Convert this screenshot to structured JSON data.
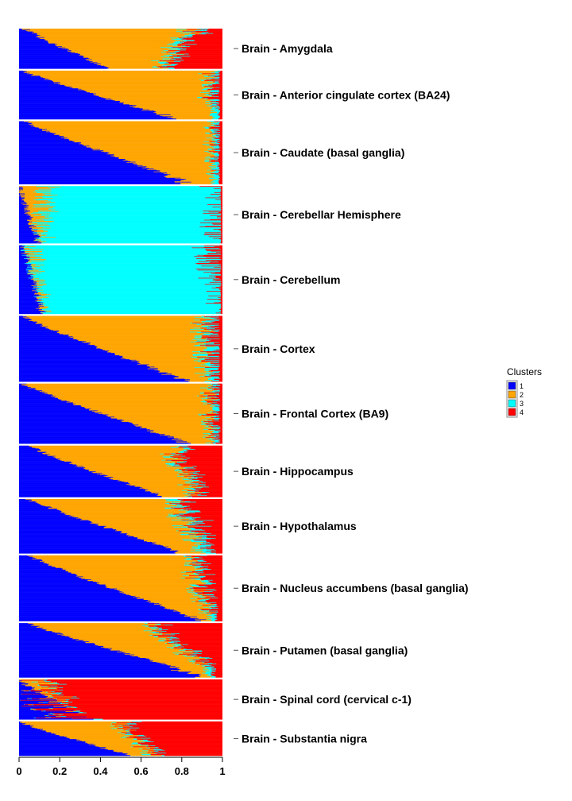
{
  "chart_data": {
    "type": "bar",
    "orientation": "horizontal",
    "stacked": true,
    "xlim": [
      0,
      1
    ],
    "x_ticks": [
      "0",
      "0.2",
      "0.4",
      "0.6",
      "0.8",
      "1"
    ],
    "legend": {
      "title": "Clusters",
      "placement": "right",
      "items": [
        {
          "label": "1",
          "color": "#0000ff"
        },
        {
          "label": "2",
          "color": "#ffa500"
        },
        {
          "label": "3",
          "color": "#00ffff"
        },
        {
          "label": "4",
          "color": "#ff0000"
        }
      ]
    },
    "panels": [
      {
        "name": "Brain - Amygdala",
        "n": 70,
        "c1": [
          0.03,
          0.44
        ],
        "c2": [
          0.26,
          0.82
        ],
        "c3": [
          0.02,
          0.06
        ],
        "c4_min": 0.04
      },
      {
        "name": "Brain - Anterior cingulate cortex (BA24)",
        "n": 85,
        "c1": [
          0.02,
          0.8
        ],
        "c2": [
          0.18,
          0.94
        ],
        "c3": [
          0.01,
          0.05
        ],
        "c4_min": 0.01
      },
      {
        "name": "Brain - Caudate (basal ganglia)",
        "n": 110,
        "c1": [
          0.03,
          0.88
        ],
        "c2": [
          0.12,
          0.96
        ],
        "c3": [
          0.01,
          0.05
        ],
        "c4_min": 0.01
      },
      {
        "name": "Brain - Cerebellar Hemisphere",
        "n": 100,
        "c1": [
          0.0,
          0.1
        ],
        "c2": [
          0.02,
          0.14
        ],
        "c3": [
          0.8,
          0.96
        ],
        "c4_min": 0.005
      },
      {
        "name": "Brain - Cerebellum",
        "n": 120,
        "c1": [
          0.02,
          0.12
        ],
        "c2": [
          0.0,
          0.04
        ],
        "c3": [
          0.82,
          0.96
        ],
        "c4_min": 0.005
      },
      {
        "name": "Brain - Cortex",
        "n": 115,
        "c1": [
          0.02,
          0.85
        ],
        "c2": [
          0.1,
          0.9
        ],
        "c3": [
          0.01,
          0.08
        ],
        "c4_min": 0.01
      },
      {
        "name": "Brain - Frontal Cortex (BA9)",
        "n": 105,
        "c1": [
          0.02,
          0.85
        ],
        "c2": [
          0.12,
          0.94
        ],
        "c3": [
          0.01,
          0.04
        ],
        "c4_min": 0.01
      },
      {
        "name": "Brain - Hippocampus",
        "n": 90,
        "c1": [
          0.05,
          0.72
        ],
        "c2": [
          0.15,
          0.72
        ],
        "c3": [
          0.01,
          0.05
        ],
        "c4_min": 0.04
      },
      {
        "name": "Brain - Hypothalamus",
        "n": 95,
        "c1": [
          0.05,
          0.82
        ],
        "c2": [
          0.1,
          0.72
        ],
        "c3": [
          0.01,
          0.08
        ],
        "c4_min": 0.03
      },
      {
        "name": "Brain - Nucleus accumbens (basal ganglia)",
        "n": 115,
        "c1": [
          0.05,
          0.92
        ],
        "c2": [
          0.05,
          0.8
        ],
        "c3": [
          0.01,
          0.05
        ],
        "c4_min": 0.02
      },
      {
        "name": "Brain - Putamen (basal ganglia)",
        "n": 95,
        "c1": [
          0.05,
          0.95
        ],
        "c2": [
          0.05,
          0.6
        ],
        "c3": [
          0.01,
          0.05
        ],
        "c4_min": 0.03
      },
      {
        "name": "Brain - Spinal cord (cervical c-1)",
        "n": 70,
        "c1": [
          0.0,
          0.36
        ],
        "c2": [
          0.0,
          0.12
        ],
        "c3": [
          0.0,
          0.05
        ],
        "c4_min": 0.5
      },
      {
        "name": "Brain - Substantia nigra",
        "n": 60,
        "c1": [
          0.0,
          0.55
        ],
        "c2": [
          0.1,
          0.5
        ],
        "c3": [
          0.0,
          0.05
        ],
        "c4_min": 0.1
      }
    ]
  }
}
